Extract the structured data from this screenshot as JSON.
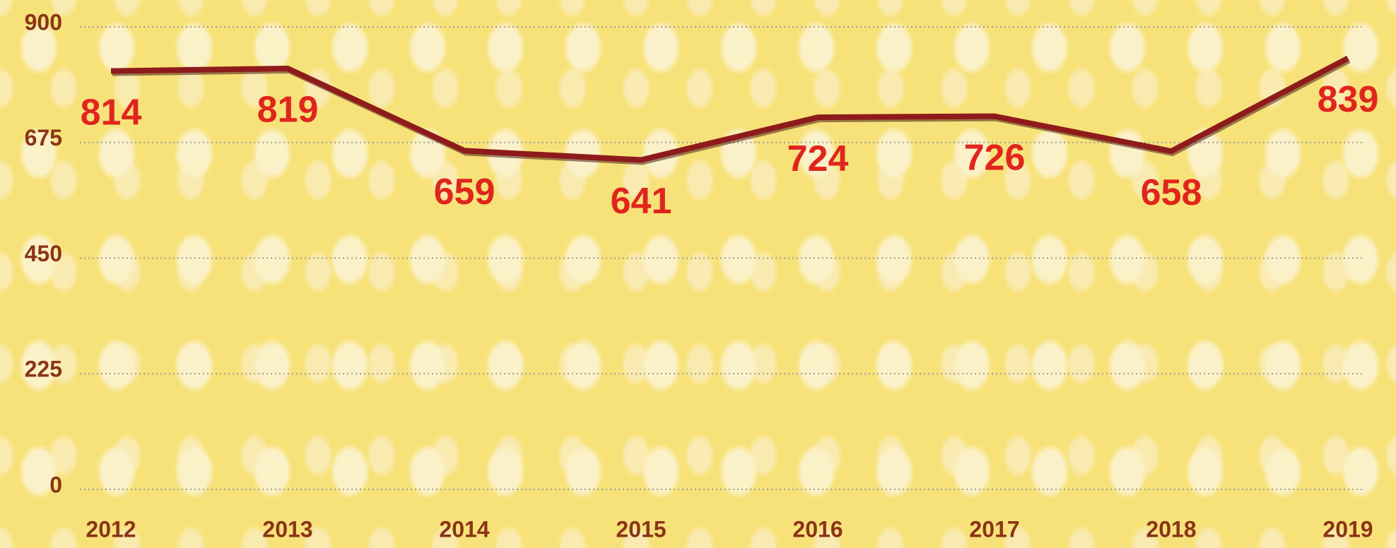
{
  "chart_data": {
    "type": "line",
    "categories": [
      "2012",
      "2013",
      "2014",
      "2015",
      "2016",
      "2017",
      "2018",
      "2019"
    ],
    "series": [
      {
        "color": "#8e1b1b",
        "values": [
          814,
          819,
          659,
          641,
          724,
          726,
          658,
          839
        ]
      }
    ],
    "ylim": [
      0,
      900
    ],
    "yticks": [
      0,
      225,
      450,
      675,
      900
    ],
    "grid": true
  }
}
